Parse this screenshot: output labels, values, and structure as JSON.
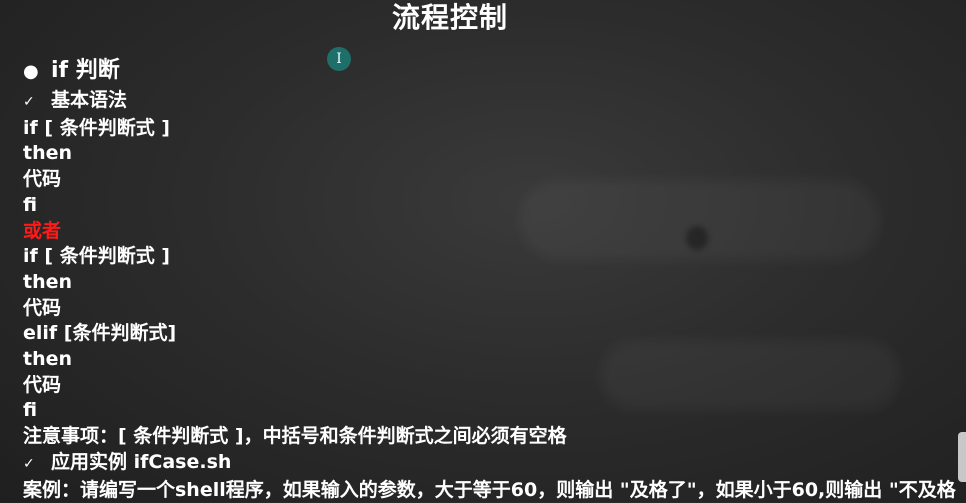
{
  "slide": {
    "title": "流程控制",
    "cursor_glyph": "I"
  },
  "content": {
    "heading_bullet": "●",
    "heading": "if 判断",
    "check_mark": "✓",
    "sub1": "基本语法",
    "lines1": [
      "if [ 条件判断式 ]",
      "then",
      "代码",
      "fi"
    ],
    "or_text": "或者",
    "lines2": [
      "if [ 条件判断式 ]",
      "then",
      "代码",
      "elif [条件判断式]",
      "then",
      "代码",
      "fi"
    ],
    "note": "注意事项：[ 条件判断式 ]，中括号和条件判断式之间必须有空格",
    "sub2": "应用实例 ifCase.sh",
    "example": "案例：请编写一个shell程序，如果输入的参数，大于等于60，则输出 \"及格了\"，如果小于60,则输出 \"不及格"
  },
  "colors": {
    "text": "#ffffff",
    "highlight": "#ff1a1a",
    "background": "#2c2c2c"
  }
}
